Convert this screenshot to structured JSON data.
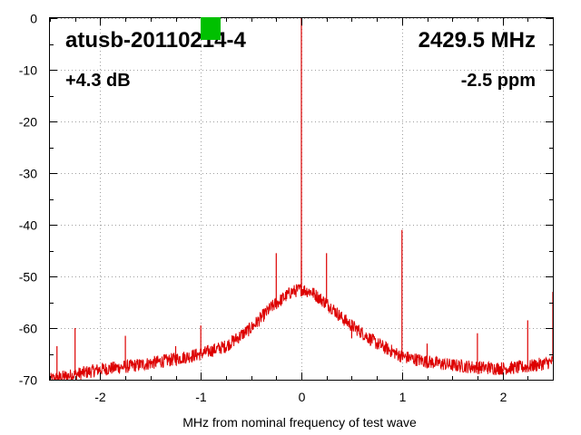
{
  "chart_data": {
    "type": "line",
    "title": "atusb-20110214-4",
    "frequency_label": "2429.5 MHz",
    "gain_label": "+4.3 dB",
    "ppm_label": "-2.5 ppm",
    "xlabel": "MHz from nominal frequency of test wave",
    "ylabel": "",
    "xlim": [
      -2.5,
      2.5
    ],
    "ylim": [
      -70,
      0
    ],
    "x_ticks": [
      -2,
      -1,
      0,
      1,
      2
    ],
    "x_tick_labels": [
      "-2",
      "-1",
      "0",
      "1",
      "2"
    ],
    "y_ticks": [
      0,
      -10,
      -20,
      -30,
      -40,
      -50,
      -60,
      -70
    ],
    "y_tick_labels": [
      "0",
      "-10",
      "-20",
      "-30",
      "-40",
      "-50",
      "-60",
      "-70"
    ],
    "grid": true,
    "series_color": "#dd0000",
    "status_indicator_color": "#00c000",
    "noise_envelope": {
      "x": [
        -2.5,
        -2.25,
        -2.0,
        -1.75,
        -1.5,
        -1.25,
        -1.0,
        -0.75,
        -0.5,
        -0.4,
        -0.3,
        -0.2,
        -0.1,
        0.0,
        0.1,
        0.2,
        0.3,
        0.4,
        0.5,
        0.75,
        1.0,
        1.25,
        1.5,
        1.75,
        2.0,
        2.25,
        2.5
      ],
      "y": [
        -70,
        -69,
        -68,
        -67.5,
        -66.8,
        -66,
        -65,
        -63.5,
        -60,
        -58,
        -56,
        -54.5,
        -53,
        -52.5,
        -53,
        -54.5,
        -56,
        -58,
        -59.5,
        -63,
        -65.5,
        -66.5,
        -67.2,
        -67.6,
        -67.8,
        -67.5,
        -66.5
      ]
    },
    "spurs": [
      {
        "x": 0.0,
        "y": 0
      },
      {
        "x": -2.43,
        "y": -63.5
      },
      {
        "x": -2.25,
        "y": -60
      },
      {
        "x": -1.75,
        "y": -61.5
      },
      {
        "x": -1.25,
        "y": -63.5
      },
      {
        "x": -1.0,
        "y": -59.5
      },
      {
        "x": -0.25,
        "y": -45.5
      },
      {
        "x": 0.25,
        "y": -45.5
      },
      {
        "x": 0.0,
        "y": -47
      },
      {
        "x": 0.5,
        "y": -62
      },
      {
        "x": 1.0,
        "y": -41
      },
      {
        "x": 1.25,
        "y": -63
      },
      {
        "x": 1.75,
        "y": -61
      },
      {
        "x": 2.25,
        "y": -58.5
      },
      {
        "x": 2.5,
        "y": -53
      }
    ]
  }
}
